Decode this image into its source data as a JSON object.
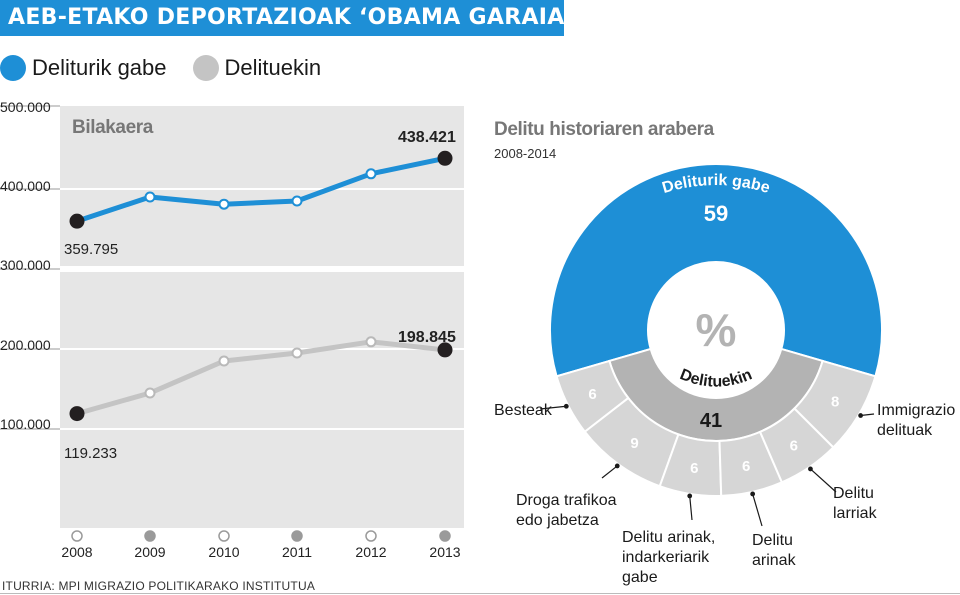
{
  "header": {
    "title": "AEB-ETAKO DEPORTAZIOAK ‘OBAMA GARAIAN’"
  },
  "legend": [
    {
      "label": "Deliturik gabe",
      "color": "#1e8fd6"
    },
    {
      "label": "Delituekin",
      "color": "#c4c4c4"
    }
  ],
  "colors": {
    "blue": "#1e8fd6",
    "gray": "#c4c4c4",
    "panel": "#e6e6e6",
    "dark": "#231f20",
    "seg_gray": "#d6d6d6"
  },
  "line_chart": {
    "panel_title": "Bilakaera",
    "y_tick_labels": [
      "500.000",
      "400.000",
      "300.000",
      "200.000",
      "100.000"
    ],
    "year_labels": [
      "2008",
      "2009",
      "2010",
      "2011",
      "2012",
      "2013"
    ],
    "label_start_blue": "359.795",
    "label_end_blue": "438.421",
    "label_start_gray": "119.233",
    "label_end_gray": "198.845"
  },
  "donut": {
    "title": "Delitu historiaren arabera",
    "subtitle": "2008-2014",
    "center_symbol": "%",
    "outer_label": "Deliturik gabe",
    "outer_value": "59",
    "inner_label": "Delituekin",
    "inner_value": "41",
    "segment_callouts": [
      {
        "label_lines": [
          "Besteak"
        ]
      },
      {
        "label_lines": [
          "Droga trafikoa",
          "edo jabetza"
        ]
      },
      {
        "label_lines": [
          "Delitu arinak,",
          "indarkeriarik",
          "gabe"
        ]
      },
      {
        "label_lines": [
          "Delitu",
          "arinak"
        ]
      },
      {
        "label_lines": [
          "Delitu",
          "larriak"
        ]
      },
      {
        "label_lines": [
          "Immigrazio",
          "delituak"
        ]
      }
    ]
  },
  "chart_data": [
    {
      "type": "line",
      "title": "Bilakaera",
      "x": [
        2008,
        2009,
        2010,
        2011,
        2012,
        2013
      ],
      "ylim": [
        0,
        500000
      ],
      "grid": true,
      "series": [
        {
          "name": "Deliturik gabe",
          "values": [
            359795,
            390000,
            381000,
            385000,
            419000,
            438421
          ]
        },
        {
          "name": "Delituekin",
          "values": [
            119233,
            145000,
            185000,
            195000,
            209000,
            198845
          ]
        }
      ]
    },
    {
      "type": "pie",
      "title": "Delitu historiaren arabera",
      "subtitle": "2008-2014",
      "categories": [
        "Deliturik gabe",
        "Delituekin"
      ],
      "values": [
        59,
        41
      ],
      "breakdown": {
        "parent": "Delituekin",
        "categories": [
          "Besteak",
          "Droga trafikoa edo jabetza",
          "Delitu arinak, indarkeriarik gabe",
          "Delitu arinak",
          "Delitu larriak",
          "Immigrazio delituak"
        ],
        "values": [
          6,
          9,
          6,
          6,
          6,
          8
        ]
      }
    }
  ],
  "source": "ITURRIA: MPI MIGRAZIO POLITIKARAKO INSTITUTUA"
}
